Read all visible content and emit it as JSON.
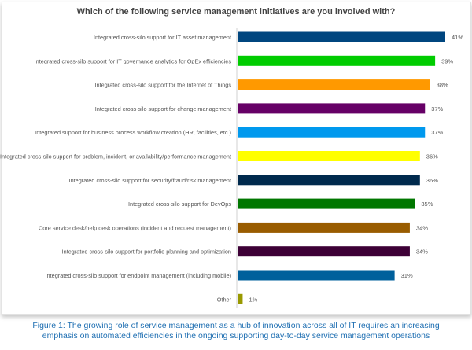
{
  "chart_data": {
    "type": "bar",
    "orientation": "horizontal",
    "title": "Which of the following service management initiatives are you involved with?",
    "categories": [
      "Integrated cross-silo support for IT asset management",
      "Integrated cross-silo support for IT governance analytics for OpEx efficiencies",
      "Integrated cross-silo support for the Internet of Things",
      "Integrated cross-silo support for change management",
      "Integrated support for business process workflow creation (HR, facilities, etc.)",
      "Integrated cross-silo support for problem, incident, or availability/performance management",
      "Integrated cross-silo support for security/fraud/risk management",
      "Integrated cross-silo support for DevOps",
      "Core service desk/help desk operations (incident and request management)",
      "Integrated cross-silo support for portfolio planning and optimization",
      "Integrated cross-silo support for endpoint management (including mobile)",
      "Other"
    ],
    "values": [
      41,
      39,
      38,
      37,
      37,
      36,
      36,
      35,
      34,
      34,
      31,
      1
    ],
    "value_labels": [
      "41%",
      "39%",
      "38%",
      "37%",
      "37%",
      "36%",
      "36%",
      "35%",
      "34%",
      "34%",
      "31%",
      "1%"
    ],
    "colors": [
      "#00467f",
      "#00cc00",
      "#ff9900",
      "#660066",
      "#0099ee",
      "#ffff00",
      "#002a4d",
      "#007700",
      "#995c00",
      "#3d0036",
      "#00609c",
      "#999900"
    ],
    "xlim": [
      0,
      45
    ],
    "grid": false,
    "legend": "none"
  },
  "caption": {
    "line1": "Figure 1: The growing role of service management as a hub of innovation across all of IT requires an increasing",
    "line2": "emphasis on automated efficiencies in the ongoing supporting day-to-day service management operations"
  }
}
